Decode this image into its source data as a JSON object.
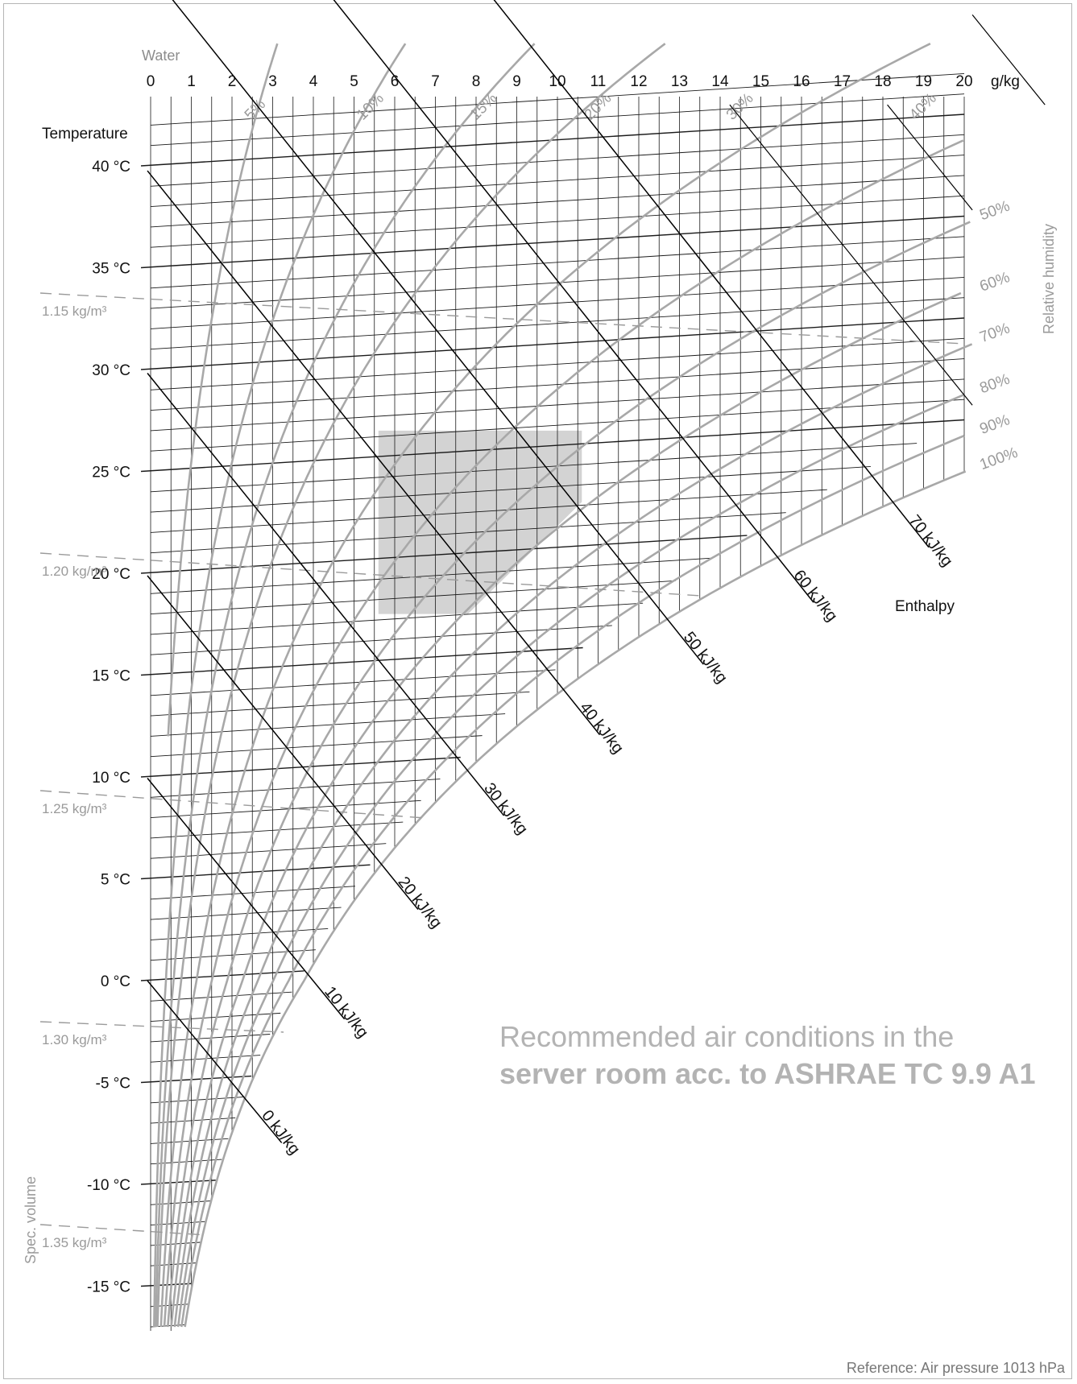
{
  "chart_data": {
    "type": "psychrometric",
    "title": "",
    "reference_note": "Reference: Air pressure 1013 hPa",
    "x_axis": {
      "label_line1": "Water",
      "unit": "g/kg",
      "range": [
        0,
        20
      ],
      "ticks": [
        0,
        1,
        2,
        3,
        4,
        5,
        6,
        7,
        8,
        9,
        10,
        11,
        12,
        13,
        14,
        15,
        16,
        17,
        18,
        19,
        20
      ]
    },
    "y_axis": {
      "label": "Temperature",
      "range": [
        -17,
        43
      ],
      "ticks": [
        {
          "value": 40,
          "label": "40 °C"
        },
        {
          "value": 35,
          "label": "35 °C"
        },
        {
          "value": 30,
          "label": "30 °C"
        },
        {
          "value": 25,
          "label": "25 °C"
        },
        {
          "value": 20,
          "label": "20 °C"
        },
        {
          "value": 15,
          "label": "15 °C"
        },
        {
          "value": 10,
          "label": "10 °C"
        },
        {
          "value": 5,
          "label": "5 °C"
        },
        {
          "value": 0,
          "label": "0 °C"
        },
        {
          "value": -5,
          "label": "-5 °C"
        },
        {
          "value": -10,
          "label": "-10 °C"
        },
        {
          "value": -15,
          "label": "-15 °C"
        }
      ]
    },
    "relative_humidity": {
      "axis_label": "Relative humidity",
      "curves": [
        {
          "rh": 5,
          "label": "5%"
        },
        {
          "rh": 10,
          "label": "10%"
        },
        {
          "rh": 15,
          "label": "15%"
        },
        {
          "rh": 20,
          "label": "20%"
        },
        {
          "rh": 30,
          "label": "30%"
        },
        {
          "rh": 40,
          "label": "40%"
        },
        {
          "rh": 50,
          "label": "50%"
        },
        {
          "rh": 60,
          "label": "60%"
        },
        {
          "rh": 70,
          "label": "70%"
        },
        {
          "rh": 80,
          "label": "80%"
        },
        {
          "rh": 90,
          "label": "90%"
        },
        {
          "rh": 100,
          "label": "100%"
        }
      ]
    },
    "enthalpy": {
      "axis_label": "Enthalpy",
      "lines": [
        {
          "h": 0,
          "label": "0 kJ/kg"
        },
        {
          "h": 10,
          "label": "10 kJ/kg"
        },
        {
          "h": 20,
          "label": "20 kJ/kg"
        },
        {
          "h": 30,
          "label": "30 kJ/kg"
        },
        {
          "h": 40,
          "label": "40 kJ/kg"
        },
        {
          "h": 50,
          "label": "50 kJ/kg"
        },
        {
          "h": 60,
          "label": "60 kJ/kg"
        },
        {
          "h": 70,
          "label": "70 kJ/kg"
        }
      ]
    },
    "specific_volume": {
      "axis_label": "Spec. volume",
      "lines": [
        {
          "density": 1.15,
          "label": "1.15 kg/m³"
        },
        {
          "density": 1.2,
          "label": "1.20 kg/m³"
        },
        {
          "density": 1.25,
          "label": "1.25 kg/m³"
        },
        {
          "density": 1.3,
          "label": "1.30 kg/m³"
        },
        {
          "density": 1.35,
          "label": "1.35 kg/m³"
        }
      ]
    },
    "recommended_zone": {
      "caption_line1": "Recommended air conditions in the",
      "caption_line2": "server room acc. to ASHRAE TC 9.9 A1",
      "polygon": [
        [
          5.6,
          18.0
        ],
        [
          5.6,
          27.0
        ],
        [
          10.6,
          27.0
        ],
        [
          10.6,
          23.5
        ],
        [
          7.8,
          18.0
        ]
      ]
    },
    "colors": {
      "grid": "#1a1a1a",
      "rh_curves": "#a8a8a8",
      "enthalpy": "#000000",
      "spec_volume": "#9a9a9a",
      "zone_fill": "#d3d3d3",
      "muted_text": "#9a9a9a",
      "caption_text": "#b3b3b3"
    }
  }
}
